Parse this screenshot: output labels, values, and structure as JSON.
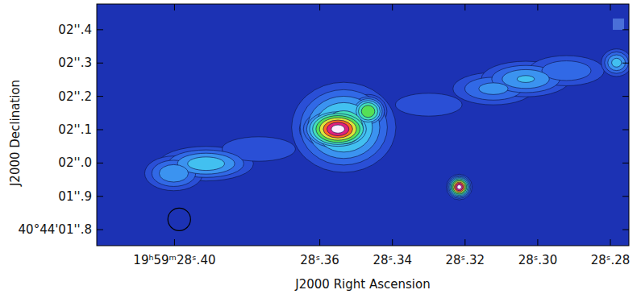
{
  "chart_data": {
    "type": "image",
    "x_label": "J2000 Right Ascension",
    "y_label": "J2000 Declination",
    "xlim": [
      28.4214,
      28.2749
    ],
    "ylim": [
      1.752,
      2.477
    ],
    "xticks": [
      {
        "value": 28.4,
        "label": "19ʰ59ᵐ28ˢ.40"
      },
      {
        "value": 28.36,
        "label": "28ˢ.36"
      },
      {
        "value": 28.34,
        "label": "28ˢ.34"
      },
      {
        "value": 28.32,
        "label": "28ˢ.32"
      },
      {
        "value": 28.3,
        "label": "28ˢ.30"
      },
      {
        "value": 28.28,
        "label": "28ˢ.28"
      }
    ],
    "yticks": [
      {
        "value": 2.4,
        "label": "02''.4"
      },
      {
        "value": 2.3,
        "label": "02''.3"
      },
      {
        "value": 2.2,
        "label": "02''.2"
      },
      {
        "value": 2.1,
        "label": "02''.1"
      },
      {
        "value": 2.0,
        "label": "02''.0"
      },
      {
        "value": 1.9,
        "label": "01''.9"
      },
      {
        "value": 1.8,
        "label": "40°44'01''.8"
      }
    ],
    "contour_levels": [
      0.03,
      0.06,
      0.1,
      0.15,
      0.22,
      0.32,
      0.45,
      0.6,
      0.75,
      0.9
    ],
    "colors": [
      "#2a4fd6",
      "#3169e6",
      "#3b93f0",
      "#42c0f0",
      "#44e0b8",
      "#55e055",
      "#dde63a",
      "#ff6a22",
      "#e2207c",
      "#ffeaff"
    ],
    "components": [
      {
        "ra": 28.3534,
        "dec": 2.107,
        "peak": 0.3,
        "sx": 0.00669,
        "sy": 0.063
      },
      {
        "ra": 28.355,
        "dec": 2.102,
        "peak": 1.0,
        "sx": 0.00401,
        "sy": 0.0266
      },
      {
        "ra": 28.3467,
        "dec": 2.155,
        "peak": 0.45,
        "sx": 0.00223,
        "sy": 0.0218
      },
      {
        "ra": 28.3216,
        "dec": 1.928,
        "peak": 1.0,
        "sx": 0.00134,
        "sy": 0.0145
      },
      {
        "ra": 28.3913,
        "dec": 1.998,
        "peak": 0.2,
        "sx": 0.00669,
        "sy": 0.0266
      },
      {
        "ra": 28.4002,
        "dec": 1.969,
        "peak": 0.15,
        "sx": 0.00446,
        "sy": 0.029
      },
      {
        "ra": 28.3768,
        "dec": 2.042,
        "peak": 0.05,
        "sx": 0.01,
        "sy": 0.0363
      },
      {
        "ra": 28.33,
        "dec": 2.175,
        "peak": 0.06,
        "sx": 0.0078,
        "sy": 0.0291
      },
      {
        "ra": 28.3122,
        "dec": 2.223,
        "peak": 0.12,
        "sx": 0.00669,
        "sy": 0.0291
      },
      {
        "ra": 28.3033,
        "dec": 2.252,
        "peak": 0.16,
        "sx": 0.00669,
        "sy": 0.0291
      },
      {
        "ra": 28.2921,
        "dec": 2.277,
        "peak": 0.1,
        "sx": 0.00669,
        "sy": 0.0291
      },
      {
        "ra": 28.2783,
        "dec": 2.301,
        "peak": 0.18,
        "sx": 0.00223,
        "sy": 0.0218
      }
    ],
    "beam": {
      "ra": 28.3987,
      "dec": 1.831,
      "width": 0.00624,
      "height": 0.0678
    }
  }
}
